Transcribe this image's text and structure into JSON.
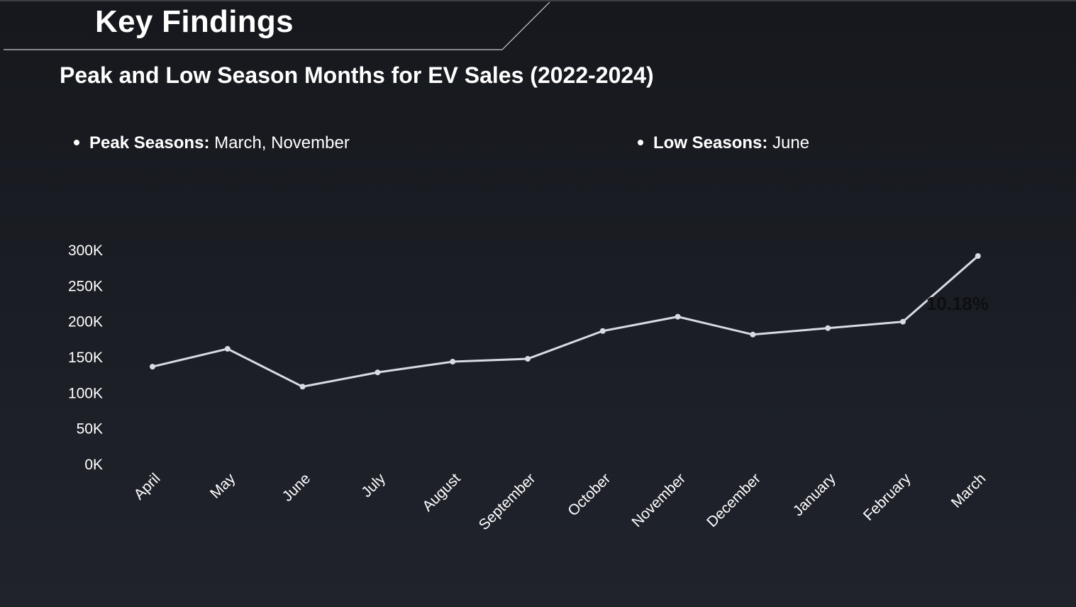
{
  "header": {
    "title": "Key Findings"
  },
  "notes": {
    "peak_label": "Peak Seasons:",
    "peak_value": "March, November",
    "low_label": "Low Seasons:",
    "low_value": "June"
  },
  "colors": {
    "background": "#1b1e25",
    "line": "#d9dbe3",
    "text": "#ffffff"
  },
  "chart_data": {
    "type": "line",
    "title": "Peak and Low Season Months for EV Sales (2022-2024)",
    "xlabel": "",
    "ylabel": "",
    "categories": [
      "April",
      "May",
      "June",
      "July",
      "August",
      "September",
      "October",
      "November",
      "December",
      "January",
      "February",
      "March"
    ],
    "series": [
      {
        "values": [
          136000,
          161000,
          108000,
          128000,
          143000,
          147000,
          186000,
          206000,
          181000,
          190000,
          199000,
          291000
        ]
      }
    ],
    "ylim": [
      0,
      300000
    ],
    "yticks": [
      "0K",
      "50K",
      "100K",
      "150K",
      "200K",
      "250K",
      "300K"
    ],
    "yticks_values": [
      0,
      50000,
      100000,
      150000,
      200000,
      250000,
      300000
    ],
    "annotation": "10.18%",
    "grid": false,
    "legend": "none"
  }
}
